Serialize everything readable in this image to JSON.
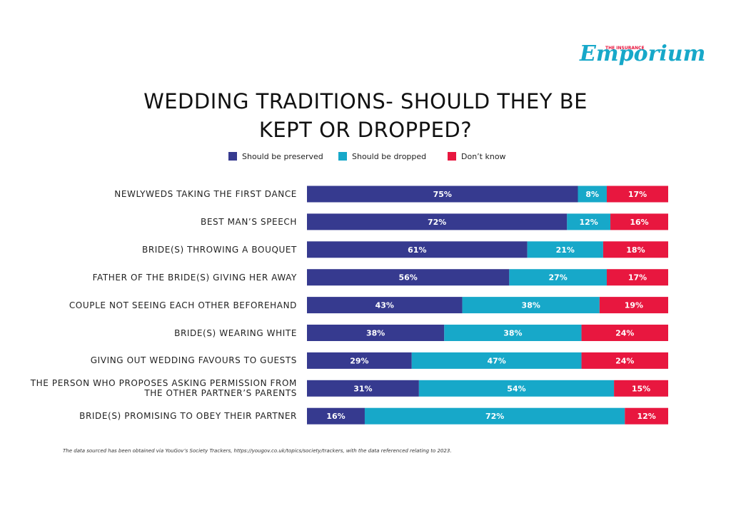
{
  "logo": {
    "tagline": "THE INSURANCE",
    "name": "Emporium"
  },
  "chart_data": {
    "type": "stacked-bar-horizontal",
    "title": "WEDDING TRADITIONS- SHOULD THEY BE KEPT OR DROPPED?",
    "categories": [
      "NEWLYWEDS TAKING THE FIRST DANCE",
      "BEST MAN’S SPEECH",
      "BRIDE(S) THROWING A BOUQUET",
      "FATHER OF THE BRIDE(S) GIVING HER AWAY",
      "COUPLE NOT SEEING EACH OTHER BEFOREHAND",
      "BRIDE(S) WEARING WHITE",
      "GIVING OUT WEDDING FAVOURS TO GUESTS",
      "THE PERSON WHO PROPOSES ASKING PERMISSION FROM THE OTHER PARTNER’S PARENTS",
      "BRIDE(S) PROMISING TO OBEY THEIR PARTNER"
    ],
    "series": [
      {
        "name": "Should be preserved",
        "color": "#363a8f",
        "values": [
          75,
          72,
          61,
          56,
          43,
          38,
          29,
          31,
          16
        ],
        "value_labels": [
          "75%",
          "72%",
          "61%",
          "56%",
          "43%",
          "38%",
          "29%",
          "31%",
          "16%"
        ]
      },
      {
        "name": "Should be dropped",
        "color": "#17a8c9",
        "values": [
          8,
          12,
          21,
          27,
          38,
          38,
          47,
          54,
          72
        ],
        "value_labels": [
          "8%",
          "12%",
          "21%",
          "27%",
          "38%",
          "38%",
          "47%",
          "54%",
          "72%"
        ]
      },
      {
        "name": "Don’t know",
        "color": "#e8173f",
        "values": [
          17,
          16,
          18,
          17,
          19,
          24,
          24,
          15,
          12
        ],
        "value_labels": [
          "17%",
          "16%",
          "18%",
          "17%",
          "19%",
          "24%",
          "24%",
          "15%",
          "12%"
        ]
      }
    ],
    "xlim": [
      0,
      100
    ],
    "footnote": "The data sourced has been obtained via YouGov’s Society Trackers, https://yougov.co.uk/topics/society/trackers, with the data referenced relating to 2023."
  }
}
